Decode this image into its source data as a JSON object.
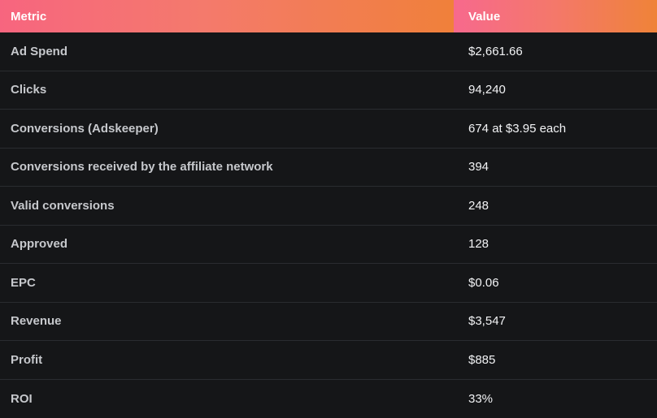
{
  "table": {
    "headers": {
      "metric": "Metric",
      "value": "Value"
    },
    "rows": [
      {
        "metric": "Ad Spend",
        "value": "$2,661.66"
      },
      {
        "metric": "Clicks",
        "value": "94,240"
      },
      {
        "metric": "Conversions (Adskeeper)",
        "value": "674 at $3.95 each"
      },
      {
        "metric": "Conversions received by the affiliate network",
        "value": "394"
      },
      {
        "metric": "Valid conversions",
        "value": "248"
      },
      {
        "metric": "Approved",
        "value": "128"
      },
      {
        "metric": "EPC",
        "value": "$0.06"
      },
      {
        "metric": "Revenue",
        "value": "$3,547"
      },
      {
        "metric": "Profit",
        "value": "$885"
      },
      {
        "metric": "ROI",
        "value": "33%"
      }
    ]
  }
}
